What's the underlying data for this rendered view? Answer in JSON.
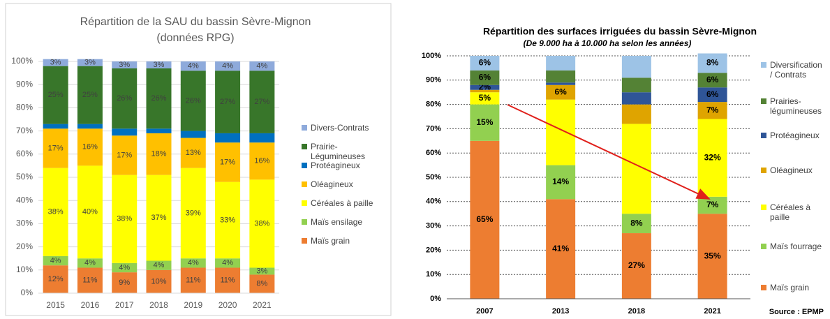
{
  "chart_data": [
    {
      "type": "stacked_bar",
      "title": "Répartition de la SAU du bassin Sèvre-Mignon",
      "subtitle": "(données RPG)",
      "categories": [
        "2015",
        "2016",
        "2017",
        "2018",
        "2019",
        "2020",
        "2021"
      ],
      "ylim": [
        0,
        100
      ],
      "yticks": [
        {
          "value": 0,
          "label": "0%"
        },
        {
          "value": 10,
          "label": "10%"
        },
        {
          "value": 20,
          "label": "20%"
        },
        {
          "value": 30,
          "label": "30%"
        },
        {
          "value": 40,
          "label": "40%"
        },
        {
          "value": 50,
          "label": "50%"
        },
        {
          "value": 60,
          "label": "60%"
        },
        {
          "value": 70,
          "label": "70%"
        },
        {
          "value": 80,
          "label": "80%"
        },
        {
          "value": 90,
          "label": "90%"
        },
        {
          "value": 100,
          "label": "100%"
        }
      ],
      "grid": true,
      "series": [
        {
          "name": "Maïs grain",
          "color": "#ed7d31",
          "values": [
            12,
            11,
            9,
            10,
            11,
            11,
            8
          ],
          "value_labels": [
            "12%",
            "11%",
            "9%",
            "10%",
            "11%",
            "11%",
            "8%"
          ]
        },
        {
          "name": "Maïs ensilage",
          "color": "#92d050",
          "values": [
            4,
            4,
            4,
            4,
            4,
            4,
            3
          ],
          "value_labels": [
            "4%",
            "4%",
            "4%",
            "4%",
            "4%",
            "4%",
            "3%"
          ]
        },
        {
          "name": "Céréales à paille",
          "color": "#ffff00",
          "values": [
            38,
            40,
            38,
            37,
            39,
            33,
            38
          ],
          "value_labels": [
            "38%",
            "40%",
            "38%",
            "37%",
            "39%",
            "33%",
            "38%"
          ]
        },
        {
          "name": "Oléagineux",
          "color": "#ffc000",
          "values": [
            17,
            16,
            17,
            18,
            13,
            17,
            16
          ],
          "value_labels": [
            "17%",
            "16%",
            "17%",
            "18%",
            "13%",
            "17%",
            "16%"
          ]
        },
        {
          "name": "Protéagineux",
          "color": "#0070c0",
          "values": [
            2,
            2,
            3,
            2,
            3,
            4,
            4
          ]
        },
        {
          "name": "Prairie-Légumineuses",
          "color": "#38762a",
          "values": [
            25,
            25,
            26,
            26,
            26,
            27,
            27
          ],
          "value_labels": [
            "25%",
            "25%",
            "26%",
            "26%",
            "26%",
            "27%",
            "27%"
          ]
        },
        {
          "name": "Divers-Contrats",
          "color": "#8eaadb",
          "values": [
            3,
            3,
            3,
            3,
            4,
            4,
            4
          ],
          "value_labels": [
            "3%",
            "3%",
            "3%",
            "3%",
            "4%",
            "4%",
            "4%"
          ]
        }
      ]
    },
    {
      "type": "stacked_bar",
      "title": "Répartition des surfaces irriguées du bassin Sèvre-Mignon",
      "subtitle": "(De 9.000 ha à 10.000 ha selon les années)",
      "source": "Source : EPMP",
      "categories": [
        "2007",
        "2013",
        "2018",
        "2021"
      ],
      "ylim": [
        0,
        100
      ],
      "yticks": [
        {
          "value": 0,
          "label": "0%"
        },
        {
          "value": 10,
          "label": "10%"
        },
        {
          "value": 20,
          "label": "20%"
        },
        {
          "value": 30,
          "label": "30%"
        },
        {
          "value": 40,
          "label": "40%"
        },
        {
          "value": 50,
          "label": "50%"
        },
        {
          "value": 60,
          "label": "60%"
        },
        {
          "value": 70,
          "label": "70%"
        },
        {
          "value": 80,
          "label": "80%"
        },
        {
          "value": 90,
          "label": "90%"
        },
        {
          "value": 100,
          "label": "100%"
        }
      ],
      "grid": true,
      "series": [
        {
          "name": "Maïs grain",
          "color": "#ed7d31",
          "values": [
            65,
            41,
            27,
            35
          ],
          "value_labels": [
            "65%",
            "41%",
            "27%",
            "35%"
          ]
        },
        {
          "name": "Maïs fourrage",
          "color": "#92d050",
          "values": [
            15,
            14,
            8,
            7
          ],
          "value_labels": [
            "15%",
            "14%",
            "8%",
            "7%"
          ]
        },
        {
          "name": "Céréales à paille",
          "color": "#ffff00",
          "values": [
            5,
            27,
            37,
            32
          ],
          "value_labels": [
            "5%",
            null,
            null,
            "32%"
          ]
        },
        {
          "name": "Oléagineux",
          "color": "#dfa400",
          "values": [
            1,
            6,
            8,
            7
          ],
          "value_labels": [
            null,
            "6%",
            null,
            "7%"
          ]
        },
        {
          "name": "Protéagineux",
          "color": "#2f5597",
          "values": [
            2,
            1,
            5,
            6
          ],
          "value_labels": [
            "2%",
            null,
            null,
            "6%"
          ]
        },
        {
          "name": "Prairies-légumineuses",
          "color": "#548235",
          "values": [
            6,
            5,
            6,
            6
          ],
          "value_labels": [
            "6%",
            null,
            null,
            "6%"
          ]
        },
        {
          "name": "Diversification / Contrats",
          "color": "#9dc3e6",
          "values": [
            6,
            6,
            9,
            8
          ],
          "value_labels": [
            "6%",
            null,
            null,
            "8%"
          ]
        }
      ]
    }
  ]
}
